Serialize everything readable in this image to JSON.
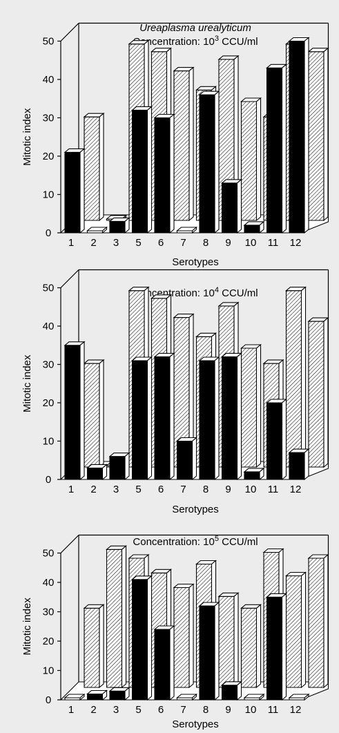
{
  "figure": {
    "title": "Ureaplasma urealyticum",
    "background": "#ececec",
    "control_fill": "hatched",
    "treated_fill": "#000000"
  },
  "chart_data": [
    {
      "type": "bar",
      "subtitle_prefix": "Concentration: 10",
      "subtitle_exp": "3",
      "subtitle_suffix": " CCU/ml",
      "xlabel": "Serotypes",
      "ylabel": "Mitotic index",
      "ylim": [
        0,
        50
      ],
      "yticks": [
        0,
        10,
        20,
        30,
        40,
        50
      ],
      "categories": [
        "1",
        "2",
        "3",
        "5",
        "6",
        "7",
        "8",
        "9",
        "10",
        "11",
        "12"
      ],
      "series": [
        {
          "values": [
            21,
            0,
            3,
            32,
            30,
            0,
            36,
            13,
            2,
            43,
            50
          ]
        },
        {
          "values": [
            27,
            0,
            46,
            44,
            39,
            34,
            42,
            31,
            27,
            46,
            44
          ]
        }
      ]
    },
    {
      "type": "bar",
      "subtitle_prefix": "Concentration: 10",
      "subtitle_exp": "4",
      "subtitle_suffix": " CCU/ml",
      "xlabel": "Serotypes",
      "ylabel": "Mitotic index",
      "ylim": [
        0,
        50
      ],
      "yticks": [
        0,
        10,
        20,
        30,
        40,
        50
      ],
      "categories": [
        "1",
        "2",
        "3",
        "5",
        "6",
        "7",
        "8",
        "9",
        "10",
        "11",
        "12"
      ],
      "series": [
        {
          "values": [
            35,
            3,
            6,
            31,
            32,
            10,
            31,
            32,
            2,
            20,
            7
          ]
        },
        {
          "values": [
            27,
            0,
            46,
            44,
            39,
            34,
            42,
            31,
            27,
            46,
            38
          ]
        }
      ]
    },
    {
      "type": "bar",
      "subtitle_prefix": "Concentration: 10",
      "subtitle_exp": "5",
      "subtitle_suffix": " CCU/ml",
      "xlabel": "Serotypes",
      "ylabel": "Mitotic index",
      "ylim": [
        0,
        50
      ],
      "yticks": [
        0,
        10,
        20,
        30,
        40,
        50
      ],
      "categories": [
        "1",
        "2",
        "3",
        "5",
        "6",
        "7",
        "8",
        "9",
        "10",
        "11",
        "12"
      ],
      "series": [
        {
          "values": [
            0,
            2,
            3,
            41,
            24,
            0,
            32,
            5,
            0,
            35,
            0
          ]
        },
        {
          "values": [
            27,
            47,
            44,
            39,
            34,
            42,
            31,
            27,
            46,
            38,
            44
          ]
        }
      ]
    }
  ]
}
